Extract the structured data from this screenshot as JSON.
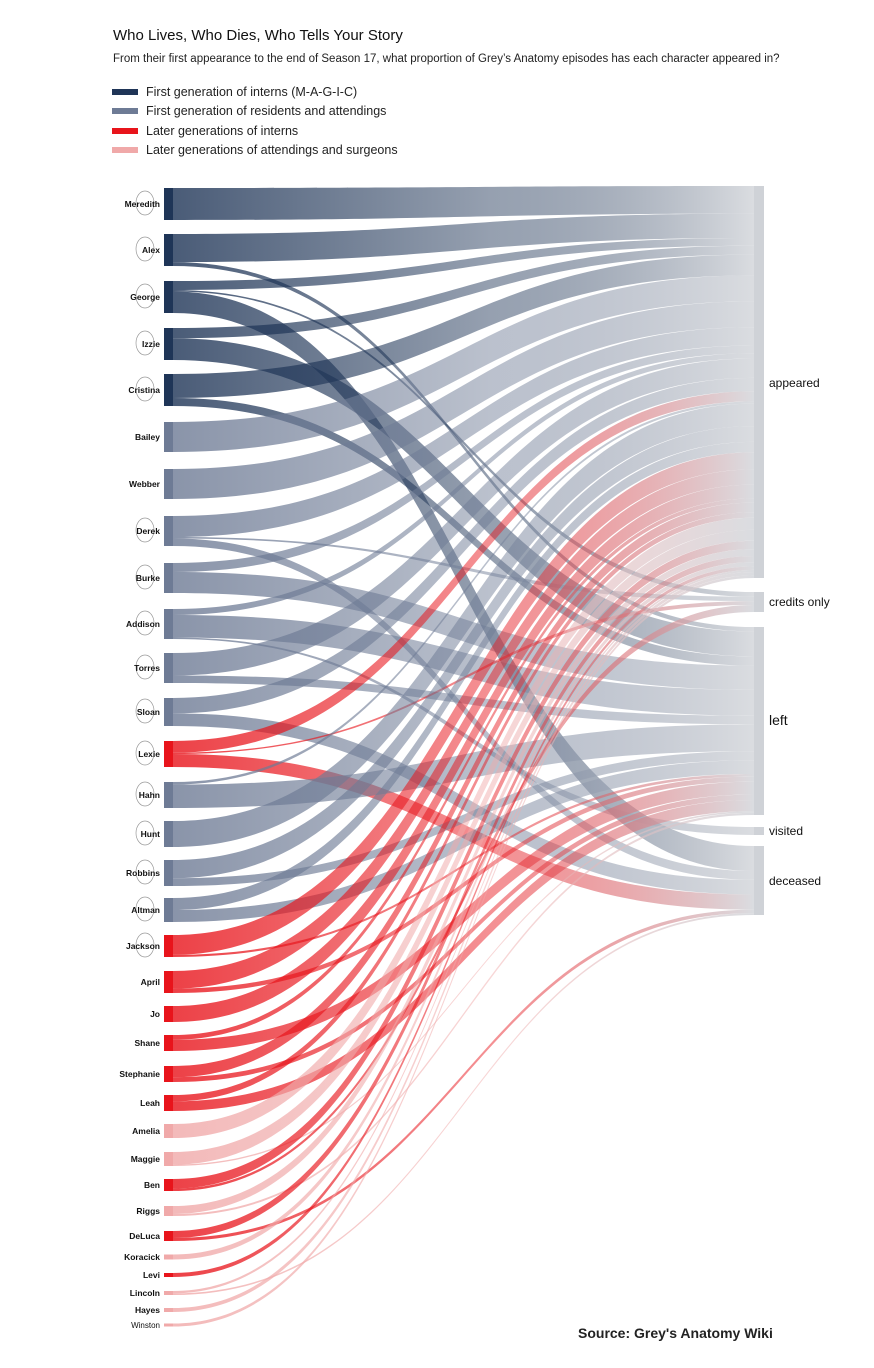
{
  "title": "Who Lives, Who Dies, Who Tells Your Story",
  "subtitle": "From their first appearance to the end of Season 17, what proportion of Grey’s Anatomy episodes has each character appeared in?",
  "legend": [
    {
      "label": "First generation of interns (M-A-G-I-C)",
      "color": "#1f3557"
    },
    {
      "label": "First generation of residents and attendings",
      "color": "#6e7b95"
    },
    {
      "label": "Later generations of interns",
      "color": "#e8141b"
    },
    {
      "label": "Later generations of attendings and surgeons",
      "color": "#f0a9a9"
    }
  ],
  "source": "Source: Grey's Anatomy Wiki",
  "colors": {
    "interns_first": "#1f3557",
    "residents_first": "#6e7b95",
    "interns_later": "#e8141b",
    "attendings_later": "#f0a9a9",
    "target_bar": "#cfd2d7"
  },
  "chart_data": {
    "type": "sankey",
    "targets": [
      "appeared",
      "credits only",
      "left",
      "visited",
      "deceased"
    ],
    "characters": [
      {
        "name": "Meredith",
        "group": "interns_first",
        "flows": {
          "appeared": 1.0
        }
      },
      {
        "name": "Alex",
        "group": "interns_first",
        "flows": {
          "appeared": 0.88,
          "left": 0.12
        }
      },
      {
        "name": "George",
        "group": "interns_first",
        "flows": {
          "appeared": 0.28,
          "credits only": 0.05,
          "deceased": 0.67
        }
      },
      {
        "name": "Izzie",
        "group": "interns_first",
        "flows": {
          "appeared": 0.32,
          "left": 0.68
        }
      },
      {
        "name": "Cristina",
        "group": "interns_first",
        "flows": {
          "appeared": 0.75,
          "left": 0.25
        }
      },
      {
        "name": "Bailey",
        "group": "residents_first",
        "flows": {
          "appeared": 1.0
        }
      },
      {
        "name": "Webber",
        "group": "residents_first",
        "flows": {
          "appeared": 1.0
        }
      },
      {
        "name": "Derek",
        "group": "residents_first",
        "flows": {
          "appeared": 0.7,
          "credits only": 0.05,
          "deceased": 0.25
        }
      },
      {
        "name": "Burke",
        "group": "residents_first",
        "flows": {
          "appeared": 0.3,
          "left": 0.7
        }
      },
      {
        "name": "Addison",
        "group": "residents_first",
        "flows": {
          "appeared": 0.2,
          "left": 0.75,
          "visited": 0.05
        }
      },
      {
        "name": "Torres",
        "group": "residents_first",
        "flows": {
          "appeared": 0.75,
          "left": 0.25
        }
      },
      {
        "name": "Sloan",
        "group": "residents_first",
        "flows": {
          "appeared": 0.55,
          "deceased": 0.45
        }
      },
      {
        "name": "Lexie",
        "group": "interns_later",
        "flows": {
          "appeared": 0.45,
          "credits only": 0.05,
          "deceased": 0.5
        }
      },
      {
        "name": "Hahn",
        "group": "residents_first",
        "flows": {
          "appeared": 0.1,
          "left": 0.9
        }
      },
      {
        "name": "Hunt",
        "group": "residents_first",
        "flows": {
          "appeared": 1.0
        }
      },
      {
        "name": "Robbins",
        "group": "residents_first",
        "flows": {
          "appeared": 0.7,
          "left": 0.3
        }
      },
      {
        "name": "Altman",
        "group": "residents_first",
        "flows": {
          "appeared": 0.5,
          "left": 0.5
        }
      },
      {
        "name": "Jackson",
        "group": "interns_later",
        "flows": {
          "appeared": 0.9,
          "left": 0.1
        }
      },
      {
        "name": "April",
        "group": "interns_later",
        "flows": {
          "appeared": 0.8,
          "left": 0.2
        }
      },
      {
        "name": "Jo",
        "group": "interns_later",
        "flows": {
          "appeared": 1.0
        }
      },
      {
        "name": "Shane",
        "group": "interns_later",
        "flows": {
          "appeared": 0.3,
          "left": 0.7
        }
      },
      {
        "name": "Stephanie",
        "group": "interns_later",
        "flows": {
          "appeared": 0.7,
          "left": 0.3
        }
      },
      {
        "name": "Leah",
        "group": "interns_later",
        "flows": {
          "appeared": 0.4,
          "left": 0.6
        }
      },
      {
        "name": "Amelia",
        "group": "attendings_later",
        "flows": {
          "appeared": 1.0
        }
      },
      {
        "name": "Maggie",
        "group": "attendings_later",
        "flows": {
          "appeared": 0.9,
          "left": 0.1
        }
      },
      {
        "name": "Ben",
        "group": "interns_later",
        "flows": {
          "appeared": 0.8,
          "credits only": 0.2
        }
      },
      {
        "name": "Riggs",
        "group": "attendings_later",
        "flows": {
          "appeared": 0.8,
          "left": 0.2
        }
      },
      {
        "name": "DeLuca",
        "group": "interns_later",
        "flows": {
          "appeared": 0.7,
          "deceased": 0.3
        }
      },
      {
        "name": "Koracick",
        "group": "attendings_later",
        "flows": {
          "appeared": 1.0
        }
      },
      {
        "name": "Levi",
        "group": "interns_later",
        "flows": {
          "appeared": 1.0
        }
      },
      {
        "name": "Lincoln",
        "group": "attendings_later",
        "flows": {
          "appeared": 0.6,
          "deceased": 0.4
        }
      },
      {
        "name": "Hayes",
        "group": "attendings_later",
        "flows": {
          "appeared": 1.0
        }
      },
      {
        "name": "Winston",
        "group": "attendings_later",
        "flows": {
          "appeared": 1.0
        }
      }
    ]
  }
}
